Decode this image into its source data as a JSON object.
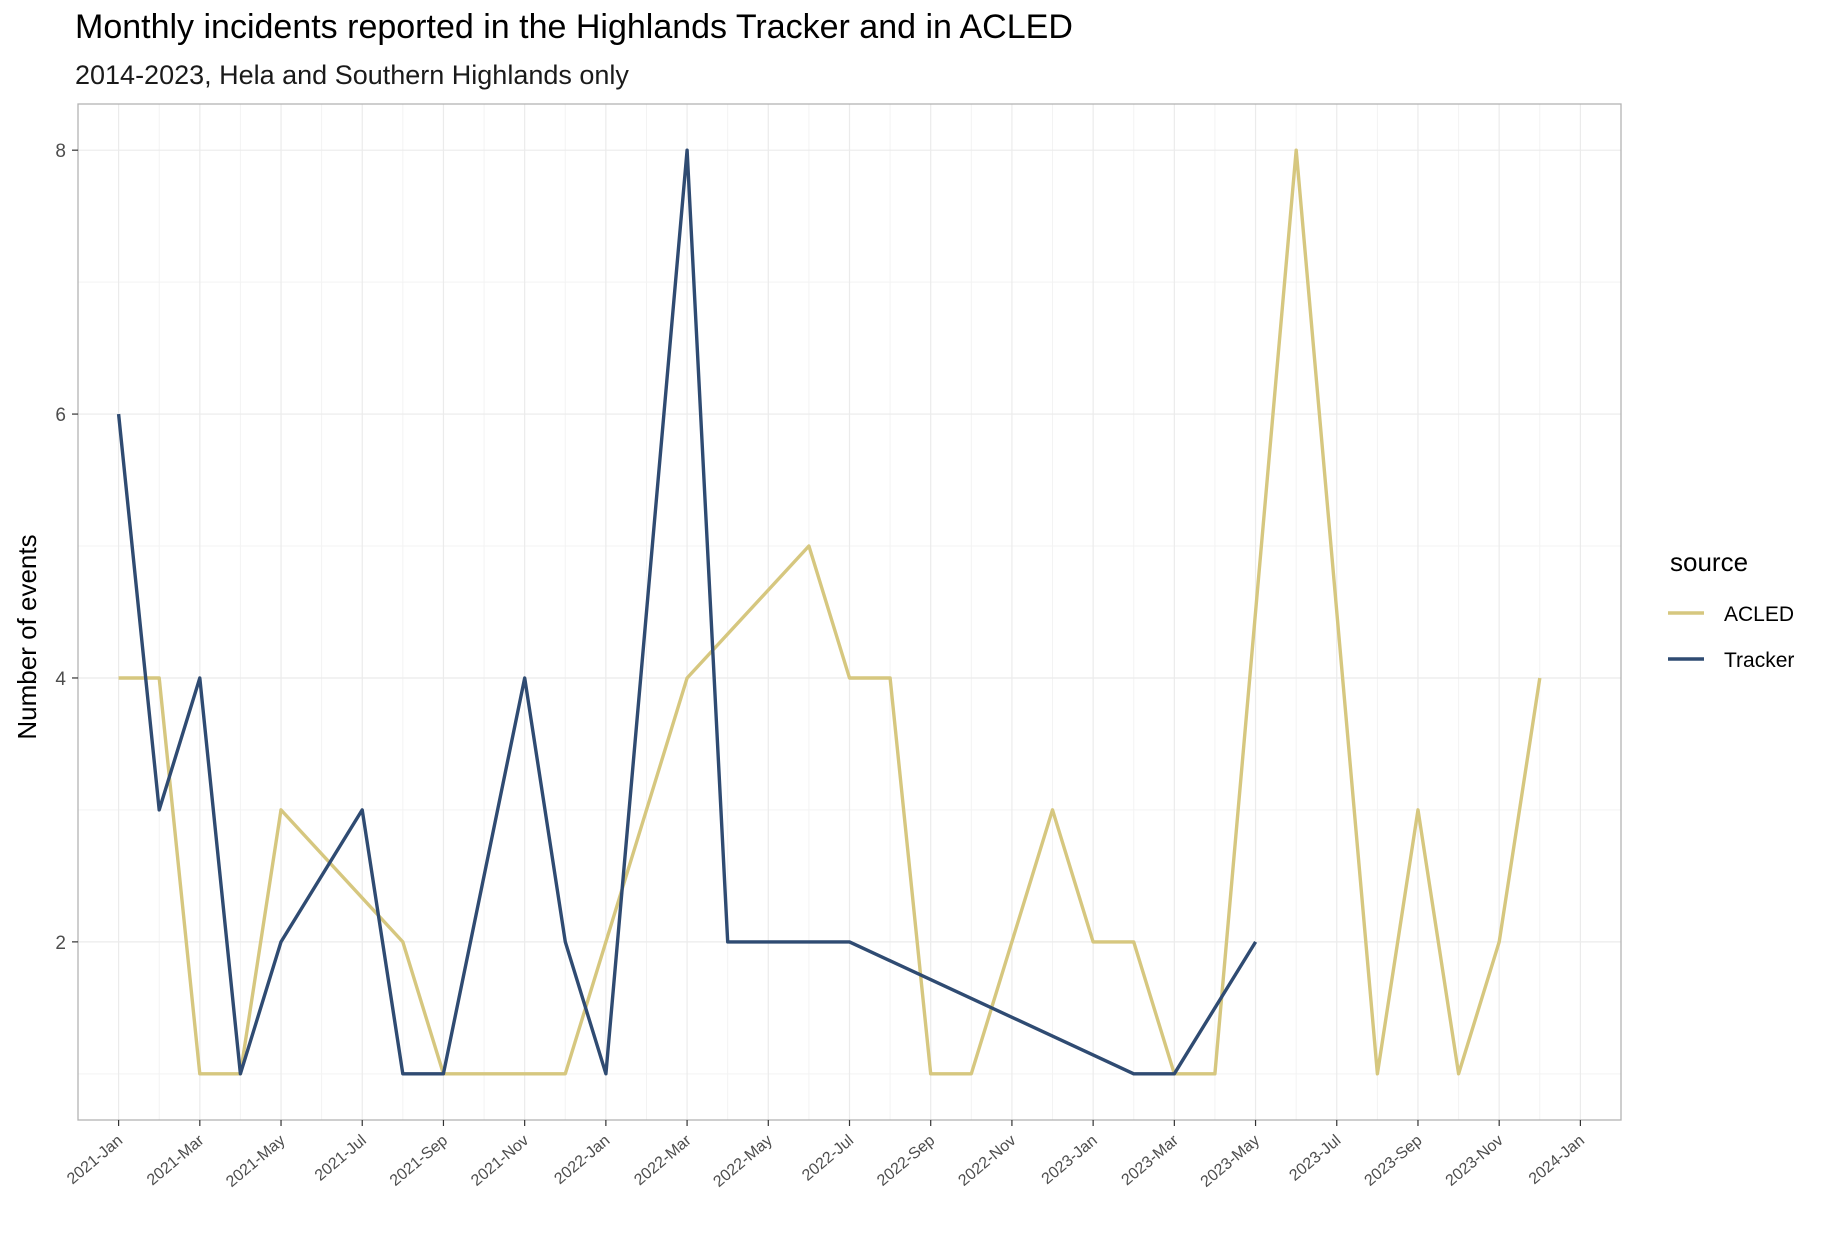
{
  "chart_data": {
    "type": "line",
    "title": "Monthly incidents reported in the Highlands Tracker and in ACLED",
    "subtitle": "2014-2023, Hela and Southern Highlands only",
    "xlabel": "",
    "ylabel": "Number of events",
    "xlim": [
      "2020-12",
      "2024-02"
    ],
    "ylim": [
      0.65,
      8.35
    ],
    "y_ticks": [
      2,
      4,
      6,
      8
    ],
    "x_ticks": [
      "2021-Jan",
      "2021-Mar",
      "2021-May",
      "2021-Jul",
      "2021-Sep",
      "2021-Nov",
      "2022-Jan",
      "2022-Mar",
      "2022-May",
      "2022-Jul",
      "2022-Sep",
      "2022-Nov",
      "2023-Jan",
      "2023-Mar",
      "2023-May",
      "2023-Jul",
      "2023-Sep",
      "2023-Nov",
      "2024-Jan"
    ],
    "grid": true,
    "legend": {
      "title": "source",
      "position": "right"
    },
    "series": [
      {
        "name": "ACLED",
        "color": "#d6c77f",
        "points": [
          [
            "2021-01",
            4
          ],
          [
            "2021-02",
            4
          ],
          [
            "2021-03",
            1
          ],
          [
            "2021-04",
            1
          ],
          [
            "2021-05",
            3
          ],
          [
            "2021-08",
            2
          ],
          [
            "2021-09",
            1
          ],
          [
            "2021-10",
            1
          ],
          [
            "2021-11",
            1
          ],
          [
            "2021-12",
            1
          ],
          [
            "2022-02",
            3
          ],
          [
            "2022-03",
            4
          ],
          [
            "2022-06",
            5
          ],
          [
            "2022-07",
            4
          ],
          [
            "2022-08",
            4
          ],
          [
            "2022-09",
            1
          ],
          [
            "2022-10",
            1
          ],
          [
            "2022-12",
            3
          ],
          [
            "2023-01",
            2
          ],
          [
            "2023-02",
            2
          ],
          [
            "2023-03",
            1
          ],
          [
            "2023-04",
            1
          ],
          [
            "2023-06",
            8
          ],
          [
            "2023-08",
            1
          ],
          [
            "2023-09",
            3
          ],
          [
            "2023-10",
            1
          ],
          [
            "2023-11",
            2
          ],
          [
            "2023-12",
            4
          ]
        ]
      },
      {
        "name": "Tracker",
        "color": "#2f4b72",
        "points": [
          [
            "2021-01",
            6
          ],
          [
            "2021-02",
            3
          ],
          [
            "2021-03",
            4
          ],
          [
            "2021-04",
            1
          ],
          [
            "2021-05",
            2
          ],
          [
            "2021-07",
            3
          ],
          [
            "2021-08",
            1
          ],
          [
            "2021-09",
            1
          ],
          [
            "2021-11",
            4
          ],
          [
            "2021-12",
            2
          ],
          [
            "2022-01",
            1
          ],
          [
            "2022-03",
            8
          ],
          [
            "2022-04",
            2
          ],
          [
            "2022-07",
            2
          ],
          [
            "2023-02",
            1
          ],
          [
            "2023-03",
            1
          ],
          [
            "2023-05",
            2
          ]
        ]
      }
    ]
  }
}
